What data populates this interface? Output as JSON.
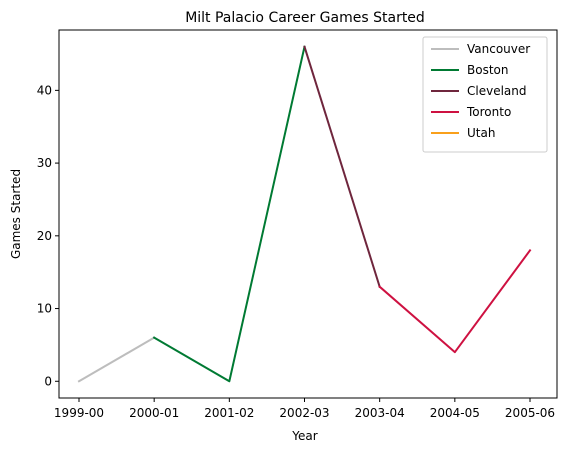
{
  "chart_data": {
    "type": "line",
    "title": "Milt Palacio Career Games Started",
    "xlabel": "Year",
    "ylabel": "Games Started",
    "categories": [
      "1999-00",
      "2000-01",
      "2001-02",
      "2002-03",
      "2003-04",
      "2004-05",
      "2005-06"
    ],
    "ylim": [
      -2.3,
      48.3
    ],
    "yticks": [
      0,
      10,
      20,
      30,
      40
    ],
    "grid": false,
    "legend_position": "top-right",
    "series": [
      {
        "name": "Vancouver",
        "color": "#bdbdbd",
        "points": [
          [
            "1999-00",
            0
          ],
          [
            "2000-01",
            6
          ]
        ]
      },
      {
        "name": "Boston",
        "color": "#007a33",
        "points": [
          [
            "2000-01",
            6
          ],
          [
            "2001-02",
            0
          ],
          [
            "2002-03",
            46
          ]
        ]
      },
      {
        "name": "Cleveland",
        "color": "#6f263d",
        "points": [
          [
            "2002-03",
            46
          ],
          [
            "2003-04",
            13
          ]
        ]
      },
      {
        "name": "Toronto",
        "color": "#ce1141",
        "points": [
          [
            "2003-04",
            13
          ],
          [
            "2004-05",
            4
          ],
          [
            "2005-06",
            18
          ]
        ]
      },
      {
        "name": "Utah",
        "color": "#f9a01b",
        "points": []
      }
    ]
  }
}
